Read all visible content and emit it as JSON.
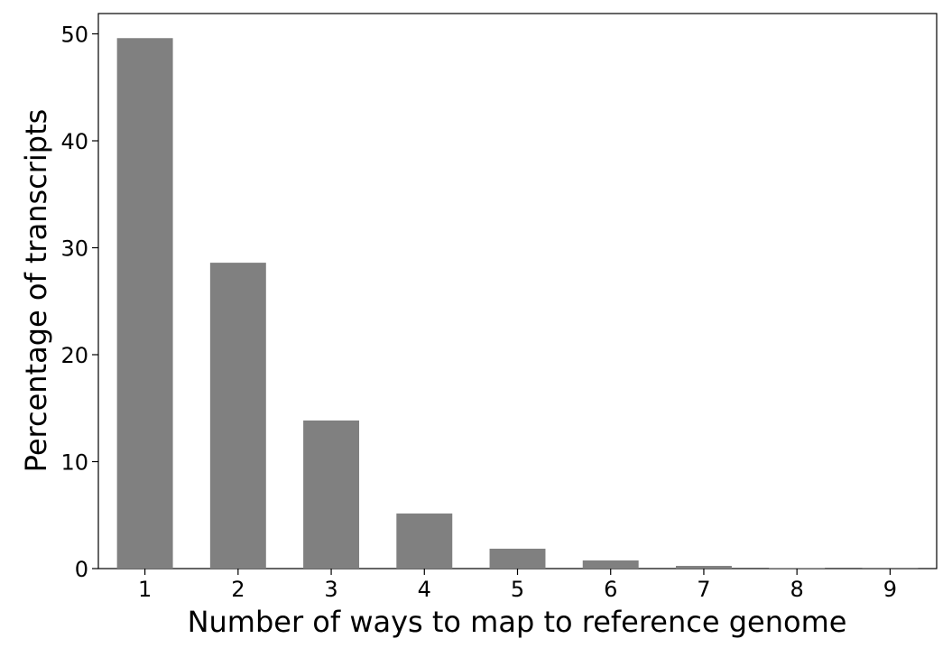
{
  "chart_data": {
    "type": "bar",
    "xlabel": "Number of ways to map to reference genome",
    "ylabel": "Percentage of transcripts",
    "x": [
      1,
      2,
      3,
      4,
      5,
      6,
      7,
      8,
      9
    ],
    "values": [
      49.6,
      28.6,
      13.85,
      5.15,
      1.86,
      0.76,
      0.25,
      0.05,
      0.02
    ],
    "color": "#808080",
    "xlim": [
      0.5,
      9.5
    ],
    "xticks": [
      1,
      2,
      3,
      4,
      5,
      6,
      7,
      8,
      9
    ],
    "ylim": [
      0,
      51.9
    ],
    "yticks": [
      0,
      10,
      20,
      30,
      40,
      50
    ],
    "grid": false
  }
}
